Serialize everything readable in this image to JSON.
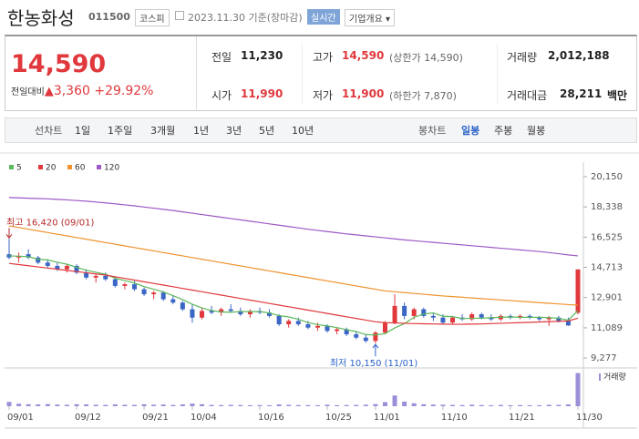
{
  "header": {
    "name": "한농화성",
    "code": "011500",
    "market": "코스피",
    "date": "2023.11.30",
    "basis": "기준(장마감)",
    "realtime": "실시간",
    "overview": "기업개요"
  },
  "quote": {
    "price": "14,590",
    "change_label": "전일대비",
    "change": "3,360",
    "change_pct": "+29.92%",
    "up_color": "#e0383c",
    "items": [
      {
        "label": "전일",
        "value": "11,230"
      },
      {
        "label": "고가",
        "value": "14,590",
        "note": "(상한가 14,590)",
        "color": "#e0383c"
      },
      {
        "label": "거래량",
        "value": "2,012,188"
      },
      {
        "label": "시가",
        "value": "11,990",
        "color": "#e0383c"
      },
      {
        "label": "저가",
        "value": "11,900",
        "note": "(하한가 7,870)",
        "color": "#e0383c"
      },
      {
        "label": "거래대금",
        "value": "28,211",
        "unit": "백만"
      }
    ]
  },
  "periods": {
    "line_label": "선차트",
    "line": [
      "1일",
      "1주일",
      "3개월",
      "1년",
      "3년",
      "5년",
      "10년"
    ],
    "candle_label": "봉차트",
    "candle": [
      "일봉",
      "주봉",
      "월봉"
    ],
    "active": "일봉"
  },
  "chart_data": {
    "type": "candlestick",
    "categories": [
      "09/01",
      null,
      null,
      null,
      null,
      null,
      null,
      "09/12",
      null,
      null,
      null,
      null,
      null,
      null,
      "09/21",
      null,
      null,
      null,
      null,
      "10/04",
      null,
      null,
      null,
      null,
      null,
      null,
      "10/16",
      null,
      null,
      null,
      null,
      null,
      null,
      "10/25",
      null,
      null,
      null,
      null,
      "11/01",
      null,
      null,
      null,
      null,
      null,
      null,
      "11/10",
      null,
      null,
      null,
      null,
      null,
      null,
      "11/21",
      null,
      null,
      null,
      null,
      null,
      null,
      "11/30"
    ],
    "open": [
      15500,
      15300,
      15500,
      15300,
      15000,
      14800,
      14600,
      14800,
      14400,
      14100,
      14200,
      14000,
      13600,
      13700,
      13400,
      13100,
      13200,
      12800,
      12600,
      12200,
      11700,
      12100,
      12000,
      12200,
      12100,
      11900,
      12100,
      12000,
      11800,
      11300,
      11500,
      11300,
      11100,
      11200,
      10900,
      11000,
      10700,
      10500,
      10300,
      10800,
      11400,
      12400,
      11800,
      12200,
      11800,
      11700,
      11400,
      11700,
      11600,
      11900,
      11700,
      11600,
      11800,
      11700,
      11800,
      11700,
      11600,
      11700,
      11500,
      11990
    ],
    "high": [
      16420,
      15600,
      15800,
      15400,
      15200,
      15000,
      14900,
      14900,
      14600,
      14300,
      14400,
      14100,
      13800,
      13900,
      13500,
      13300,
      13300,
      13000,
      12700,
      12500,
      12300,
      12400,
      12300,
      12500,
      12300,
      12200,
      12300,
      12200,
      11900,
      11600,
      11700,
      11500,
      11400,
      11300,
      11100,
      11100,
      10900,
      10700,
      10900,
      11500,
      13100,
      12600,
      12300,
      12300,
      12000,
      11900,
      11800,
      11900,
      12000,
      12000,
      11900,
      11900,
      11900,
      11900,
      11900,
      11800,
      11800,
      11800,
      11700,
      14590
    ],
    "low": [
      15200,
      15000,
      15200,
      14900,
      14700,
      14500,
      14400,
      14300,
      14000,
      13800,
      13900,
      13500,
      13400,
      13300,
      13000,
      12800,
      12700,
      12500,
      12100,
      11400,
      11600,
      11900,
      11800,
      12000,
      11800,
      11700,
      11900,
      11700,
      11200,
      11100,
      11200,
      11000,
      10900,
      10800,
      10700,
      10600,
      10400,
      10200,
      10150,
      10700,
      11300,
      11600,
      11600,
      11700,
      11500,
      11300,
      11300,
      11500,
      11500,
      11600,
      11500,
      11500,
      11600,
      11600,
      11600,
      11500,
      11200,
      11400,
      11200,
      11900
    ],
    "close": [
      15300,
      15400,
      15300,
      15000,
      14800,
      14600,
      14800,
      14400,
      14100,
      14200,
      14000,
      13600,
      13700,
      13400,
      13100,
      13200,
      12800,
      12600,
      12200,
      11700,
      12100,
      12000,
      12200,
      12100,
      11900,
      12100,
      12000,
      11800,
      11300,
      11500,
      11300,
      11100,
      11200,
      10900,
      11000,
      10700,
      10500,
      10300,
      10800,
      11400,
      12400,
      11800,
      12200,
      11800,
      11700,
      11400,
      11700,
      11600,
      11900,
      11700,
      11600,
      11800,
      11700,
      11800,
      11700,
      11600,
      11700,
      11500,
      11230,
      14590
    ],
    "up_color": "#e0383c",
    "down_color": "#3a66c6",
    "series": [
      {
        "name": "5",
        "color": "#5cb85c",
        "values": [
          15400,
          15380,
          15350,
          15200,
          15160,
          15020,
          14900,
          14720,
          14540,
          14420,
          14300,
          14060,
          13920,
          13780,
          13560,
          13400,
          13240,
          13020,
          12780,
          12500,
          12280,
          12120,
          12040,
          12020,
          12060,
          12060,
          12060,
          11980,
          11820,
          11740,
          11600,
          11400,
          11280,
          11200,
          11100,
          10980,
          10860,
          10680,
          10660,
          10740,
          11080,
          11340,
          11720,
          11920,
          11980,
          11780,
          11760,
          11640,
          11660,
          11660,
          11700,
          11720,
          11740,
          11720,
          11720,
          11720,
          11700,
          11660,
          11550,
          12120
        ]
      },
      {
        "name": "20",
        "color": "#e0383c",
        "values": [
          14950,
          14880,
          14810,
          14740,
          14670,
          14600,
          14530,
          14460,
          14390,
          14320,
          14250,
          14150,
          14050,
          13950,
          13850,
          13750,
          13650,
          13550,
          13450,
          13350,
          13250,
          13150,
          13050,
          12950,
          12850,
          12750,
          12650,
          12550,
          12450,
          12350,
          12250,
          12150,
          12050,
          11950,
          11850,
          11750,
          11650,
          11550,
          11450,
          11400,
          11380,
          11360,
          11340,
          11330,
          11320,
          11310,
          11300,
          11300,
          11310,
          11320,
          11340,
          11360,
          11380,
          11400,
          11420,
          11440,
          11460,
          11480,
          11500,
          11670
        ]
      },
      {
        "name": "60",
        "color": "#f0922e",
        "values": [
          17200,
          17100,
          17000,
          16900,
          16800,
          16700,
          16600,
          16500,
          16400,
          16300,
          16200,
          16100,
          16000,
          15900,
          15800,
          15700,
          15600,
          15500,
          15400,
          15300,
          15200,
          15100,
          15000,
          14900,
          14800,
          14700,
          14600,
          14500,
          14400,
          14300,
          14200,
          14100,
          14000,
          13900,
          13800,
          13700,
          13600,
          13500,
          13400,
          13300,
          13250,
          13200,
          13150,
          13100,
          13050,
          13000,
          12960,
          12920,
          12880,
          12840,
          12800,
          12760,
          12720,
          12680,
          12640,
          12600,
          12560,
          12520,
          12480,
          12450
        ]
      },
      {
        "name": "120",
        "color": "#9b59c6",
        "values": [
          18900,
          18880,
          18860,
          18840,
          18820,
          18790,
          18760,
          18720,
          18680,
          18630,
          18580,
          18520,
          18460,
          18400,
          18330,
          18260,
          18190,
          18120,
          18040,
          17960,
          17880,
          17800,
          17720,
          17640,
          17560,
          17480,
          17400,
          17320,
          17240,
          17160,
          17080,
          17000,
          16930,
          16860,
          16790,
          16720,
          16660,
          16600,
          16540,
          16480,
          16420,
          16360,
          16310,
          16260,
          16210,
          16160,
          16110,
          16060,
          16010,
          15960,
          15910,
          15860,
          15810,
          15760,
          15710,
          15660,
          15600,
          15530,
          15460,
          15400
        ]
      }
    ],
    "ylim": [
      8900,
      20640
    ],
    "yticks": [
      {
        "value": 9277,
        "label": "9,277"
      },
      {
        "value": 11089,
        "label": "11,089"
      },
      {
        "value": 12901,
        "label": "12,901"
      },
      {
        "value": 14713,
        "label": "14,713"
      },
      {
        "value": 16525,
        "label": "16,525"
      },
      {
        "value": 18338,
        "label": "18,338"
      },
      {
        "value": 20150,
        "label": "20,150"
      }
    ],
    "volume": {
      "name": "거래량",
      "color": "#9b8fd8",
      "lim": [
        0,
        2100000
      ],
      "values": [
        260000,
        150000,
        120000,
        110000,
        130000,
        100000,
        90000,
        120000,
        110000,
        90000,
        80000,
        110000,
        90000,
        80000,
        120000,
        90000,
        100000,
        80000,
        110000,
        160000,
        120000,
        80000,
        70000,
        80000,
        70000,
        60000,
        70000,
        60000,
        110000,
        80000,
        70000,
        70000,
        60000,
        90000,
        60000,
        70000,
        80000,
        90000,
        130000,
        250000,
        650000,
        280000,
        180000,
        120000,
        100000,
        90000,
        80000,
        70000,
        90000,
        70000,
        60000,
        80000,
        60000,
        70000,
        60000,
        60000,
        90000,
        80000,
        110000,
        2012188
      ]
    },
    "annotations": {
      "high": "최고 16,420 (09/01)",
      "low": "최저 10,150 (11/01)"
    }
  }
}
